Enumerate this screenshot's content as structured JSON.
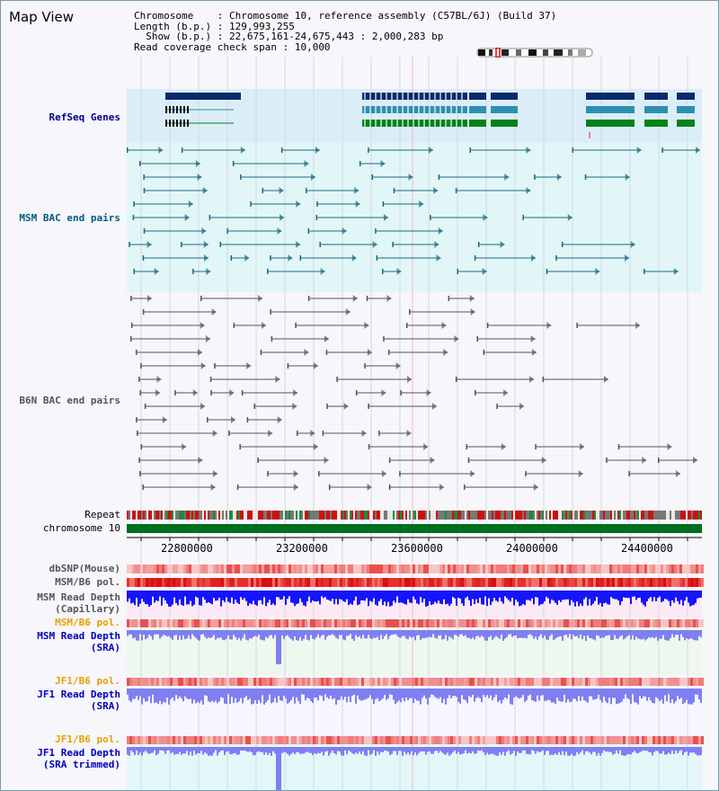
{
  "app": {
    "title": "Map View"
  },
  "info": {
    "chromosome_label": "Chromosome",
    "chromosome_value": ": Chromosome 10, reference assembly (C57BL/6J) (Build 37)",
    "length_label": "Length (b.p.)",
    "length_value": ": 129,993,255",
    "show_label": "Show (b.p.)",
    "show_value": ": 22,675,161-24,675,443 : 2,000,283 bp",
    "span_label": "Read coverage check span",
    "span_value": ": 10,000"
  },
  "tracks": {
    "refseq": "RefSeq Genes",
    "msm_bac": "MSM BAC end pairs",
    "b6n_bac": "B6N BAC end pairs",
    "repeat": "Repeat",
    "chromosome": "chromosome 10",
    "dbsnp": "dbSNP(Mouse)",
    "msm_b6_pol_1": "MSM/B6 pol.",
    "msm_read_depth_cap_1": "MSM Read Depth",
    "msm_read_depth_cap_2": "(Capillary)",
    "msm_b6_pol_2": "MSM/B6 pol.",
    "msm_read_depth_sra_1": "MSM Read Depth",
    "msm_read_depth_sra_2": "(SRA)",
    "jf1_b6_pol_1": "JF1/B6 pol.",
    "jf1_read_depth_sra_1": "JF1 Read Depth",
    "jf1_read_depth_sra_2": "(SRA)",
    "jf1_b6_pol_2": "JF1/B6 pol.",
    "jf1_read_depth_trim_1": "JF1 Read Depth",
    "jf1_read_depth_trim_2": "(SRA trimmed)"
  },
  "axis": {
    "ticks": [
      "22800000",
      "23200000",
      "23600000",
      "24000000",
      "24400000"
    ]
  },
  "colors": {
    "navy": "#00008b",
    "refseq_dark": "#0a2a6a",
    "refseq_mid": "#2f8fb0",
    "refseq_green": "#00821a",
    "bac_msm": "#1a6a82",
    "bac_b6n": "#555555",
    "chromosome": "#006e1e",
    "depth_blue": "#1414ff",
    "depth_light": "#7f7ff2",
    "orange": "#e8a000"
  }
}
